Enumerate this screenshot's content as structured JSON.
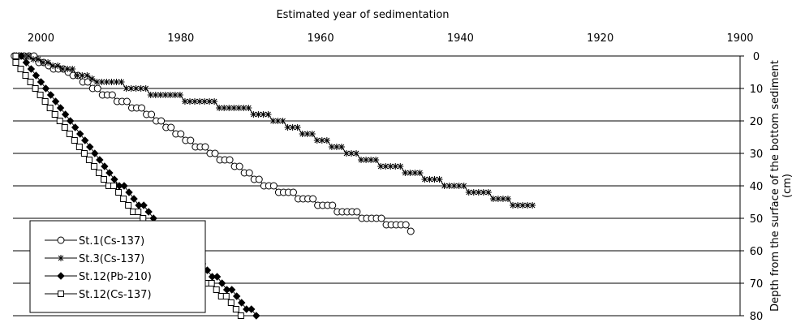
{
  "chart_data": {
    "type": "scatter",
    "title": "",
    "xlabel": "Estimated year of sedimentation",
    "ylabel": "Depth from the surface of the bottom sediment (cm)",
    "ylabel_lines": [
      "Depth from the surface of the bottom sediment",
      "(cm)"
    ],
    "xlim": [
      2004,
      1900
    ],
    "ylim": [
      0,
      80
    ],
    "x_reversed": true,
    "y_reversed": true,
    "x_ticks": [
      2000,
      1980,
      1960,
      1940,
      1920,
      1900
    ],
    "y_ticks": [
      0,
      10,
      20,
      30,
      40,
      50,
      60,
      70,
      80
    ],
    "grid": "horizontal",
    "legend_position": "bottom-left",
    "series": [
      {
        "name": "St.1(Cs-137)",
        "marker": "open-circle",
        "points": [
          [
            2003.8,
            0
          ],
          [
            2003.1,
            0
          ],
          [
            2002.4,
            0
          ],
          [
            2001.7,
            0
          ],
          [
            2001,
            0
          ],
          [
            2000.3,
            2
          ],
          [
            1999.6,
            2
          ],
          [
            1998.9,
            3
          ],
          [
            1998.2,
            4
          ],
          [
            1997.5,
            4
          ],
          [
            1996.8,
            4
          ],
          [
            1996.1,
            5
          ],
          [
            1995.4,
            6
          ],
          [
            1994.7,
            6
          ],
          [
            1994,
            8
          ],
          [
            1993.3,
            8
          ],
          [
            1992.6,
            10
          ],
          [
            1991.9,
            10
          ],
          [
            1991.2,
            12
          ],
          [
            1990.5,
            12
          ],
          [
            1989.8,
            12
          ],
          [
            1989.1,
            14
          ],
          [
            1988.4,
            14
          ],
          [
            1987.7,
            14
          ],
          [
            1987,
            16
          ],
          [
            1986.3,
            16
          ],
          [
            1985.6,
            16
          ],
          [
            1984.9,
            18
          ],
          [
            1984.2,
            18
          ],
          [
            1983.5,
            20
          ],
          [
            1982.8,
            20
          ],
          [
            1982.1,
            22
          ],
          [
            1981.4,
            22
          ],
          [
            1980.7,
            24
          ],
          [
            1980,
            24
          ],
          [
            1979.3,
            26
          ],
          [
            1978.6,
            26
          ],
          [
            1977.9,
            28
          ],
          [
            1977.2,
            28
          ],
          [
            1976.5,
            28
          ],
          [
            1975.8,
            30
          ],
          [
            1975.1,
            30
          ],
          [
            1974.4,
            32
          ],
          [
            1973.7,
            32
          ],
          [
            1973,
            32
          ],
          [
            1972.3,
            34
          ],
          [
            1971.6,
            34
          ],
          [
            1970.9,
            36
          ],
          [
            1970.2,
            36
          ],
          [
            1969.5,
            38
          ],
          [
            1968.8,
            38
          ],
          [
            1968.1,
            40
          ],
          [
            1967.4,
            40
          ],
          [
            1966.7,
            40
          ],
          [
            1966,
            42
          ],
          [
            1965.3,
            42
          ],
          [
            1964.6,
            42
          ],
          [
            1963.9,
            42
          ],
          [
            1963.2,
            44
          ],
          [
            1962.5,
            44
          ],
          [
            1961.8,
            44
          ],
          [
            1961.1,
            44
          ],
          [
            1960.4,
            46
          ],
          [
            1959.7,
            46
          ],
          [
            1959,
            46
          ],
          [
            1958.3,
            46
          ],
          [
            1957.6,
            48
          ],
          [
            1956.9,
            48
          ],
          [
            1956.2,
            48
          ],
          [
            1955.5,
            48
          ],
          [
            1954.8,
            48
          ],
          [
            1954.1,
            50
          ],
          [
            1953.4,
            50
          ],
          [
            1952.7,
            50
          ],
          [
            1952,
            50
          ],
          [
            1951.3,
            50
          ],
          [
            1950.6,
            52
          ],
          [
            1949.9,
            52
          ],
          [
            1949.2,
            52
          ],
          [
            1948.5,
            52
          ],
          [
            1947.8,
            52
          ],
          [
            1947.1,
            54
          ]
        ]
      },
      {
        "name": "St.3(Cs-137)",
        "marker": "asterisk",
        "points": [
          [
            2003.2,
            0
          ],
          [
            2002.5,
            0
          ],
          [
            2001.8,
            0
          ],
          [
            2001.1,
            1
          ],
          [
            2000.4,
            1
          ],
          [
            1999.7,
            2
          ],
          [
            1999,
            2
          ],
          [
            1998.3,
            3
          ],
          [
            1997.6,
            3
          ],
          [
            1996.9,
            4
          ],
          [
            1996.2,
            4
          ],
          [
            1995.5,
            4
          ],
          [
            1994.8,
            6
          ],
          [
            1994.1,
            6
          ],
          [
            1993.4,
            6
          ],
          [
            1992.7,
            7
          ],
          [
            1992,
            8
          ],
          [
            1991.3,
            8
          ],
          [
            1990.6,
            8
          ],
          [
            1989.9,
            8
          ],
          [
            1989.2,
            8
          ],
          [
            1988.5,
            8
          ],
          [
            1987.8,
            10
          ],
          [
            1987.1,
            10
          ],
          [
            1986.4,
            10
          ],
          [
            1985.7,
            10
          ],
          [
            1985,
            10
          ],
          [
            1984.3,
            12
          ],
          [
            1983.6,
            12
          ],
          [
            1982.9,
            12
          ],
          [
            1982.2,
            12
          ],
          [
            1981.5,
            12
          ],
          [
            1980.8,
            12
          ],
          [
            1980.1,
            12
          ],
          [
            1979.4,
            14
          ],
          [
            1978.7,
            14
          ],
          [
            1978,
            14
          ],
          [
            1977.3,
            14
          ],
          [
            1976.6,
            14
          ],
          [
            1975.9,
            14
          ],
          [
            1975.2,
            14
          ],
          [
            1974.5,
            16
          ],
          [
            1973.8,
            16
          ],
          [
            1973.1,
            16
          ],
          [
            1972.4,
            16
          ],
          [
            1971.7,
            16
          ],
          [
            1971,
            16
          ],
          [
            1970.3,
            16
          ],
          [
            1969.6,
            18
          ],
          [
            1968.9,
            18
          ],
          [
            1968.2,
            18
          ],
          [
            1967.5,
            18
          ],
          [
            1966.8,
            20
          ],
          [
            1966.1,
            20
          ],
          [
            1965.4,
            20
          ],
          [
            1964.7,
            22
          ],
          [
            1964,
            22
          ],
          [
            1963.3,
            22
          ],
          [
            1962.6,
            24
          ],
          [
            1961.9,
            24
          ],
          [
            1961.2,
            24
          ],
          [
            1960.5,
            26
          ],
          [
            1959.8,
            26
          ],
          [
            1959.1,
            26
          ],
          [
            1958.4,
            28
          ],
          [
            1957.7,
            28
          ],
          [
            1957,
            28
          ],
          [
            1956.3,
            30
          ],
          [
            1955.6,
            30
          ],
          [
            1954.9,
            30
          ],
          [
            1954.2,
            32
          ],
          [
            1953.5,
            32
          ],
          [
            1952.8,
            32
          ],
          [
            1952.1,
            32
          ],
          [
            1951.4,
            34
          ],
          [
            1950.7,
            34
          ],
          [
            1950,
            34
          ],
          [
            1949.3,
            34
          ],
          [
            1948.6,
            34
          ],
          [
            1947.9,
            36
          ],
          [
            1947.2,
            36
          ],
          [
            1946.5,
            36
          ],
          [
            1945.8,
            36
          ],
          [
            1945.1,
            38
          ],
          [
            1944.4,
            38
          ],
          [
            1943.7,
            38
          ],
          [
            1943,
            38
          ],
          [
            1942.3,
            40
          ],
          [
            1941.6,
            40
          ],
          [
            1940.9,
            40
          ],
          [
            1940.2,
            40
          ],
          [
            1939.5,
            40
          ],
          [
            1938.8,
            42
          ],
          [
            1938.1,
            42
          ],
          [
            1937.4,
            42
          ],
          [
            1936.7,
            42
          ],
          [
            1936,
            42
          ],
          [
            1935.3,
            44
          ],
          [
            1934.6,
            44
          ],
          [
            1933.9,
            44
          ],
          [
            1933.2,
            44
          ],
          [
            1932.5,
            46
          ],
          [
            1931.8,
            46
          ],
          [
            1931.1,
            46
          ],
          [
            1930.4,
            46
          ],
          [
            1929.7,
            46
          ]
        ]
      },
      {
        "name": "St.12(Pb-210)",
        "marker": "filled-diamond",
        "points": [
          [
            2003.5,
            0
          ],
          [
            2002.8,
            0
          ],
          [
            2002.1,
            2
          ],
          [
            2001.4,
            4
          ],
          [
            2000.7,
            6
          ],
          [
            2000,
            8
          ],
          [
            1999.3,
            10
          ],
          [
            1998.6,
            12
          ],
          [
            1997.9,
            14
          ],
          [
            1997.2,
            16
          ],
          [
            1996.5,
            18
          ],
          [
            1995.8,
            20
          ],
          [
            1995.1,
            22
          ],
          [
            1994.4,
            24
          ],
          [
            1993.7,
            26
          ],
          [
            1993,
            28
          ],
          [
            1992.3,
            30
          ],
          [
            1991.6,
            32
          ],
          [
            1990.9,
            34
          ],
          [
            1990.2,
            36
          ],
          [
            1989.5,
            38
          ],
          [
            1988.8,
            40
          ],
          [
            1988.1,
            40
          ],
          [
            1987.4,
            42
          ],
          [
            1986.7,
            44
          ],
          [
            1986,
            46
          ],
          [
            1985.3,
            46
          ],
          [
            1984.6,
            48
          ],
          [
            1983.9,
            50
          ],
          [
            1983.2,
            52
          ],
          [
            1982.5,
            52
          ],
          [
            1981.8,
            54
          ],
          [
            1981.1,
            56
          ],
          [
            1980.4,
            58
          ],
          [
            1979.7,
            58
          ],
          [
            1979,
            60
          ],
          [
            1978.3,
            62
          ],
          [
            1977.6,
            62
          ],
          [
            1976.9,
            64
          ],
          [
            1976.2,
            66
          ],
          [
            1975.5,
            68
          ],
          [
            1974.8,
            68
          ],
          [
            1974.1,
            70
          ],
          [
            1973.4,
            72
          ],
          [
            1972.7,
            72
          ],
          [
            1972,
            74
          ],
          [
            1971.3,
            76
          ],
          [
            1970.6,
            78
          ],
          [
            1969.9,
            78
          ],
          [
            1969.2,
            80
          ]
        ]
      },
      {
        "name": "St.12(Cs-137)",
        "marker": "open-square",
        "points": [
          [
            2003.6,
            0
          ],
          [
            2003.6,
            2
          ],
          [
            2002.9,
            4
          ],
          [
            2002.2,
            6
          ],
          [
            2001.5,
            8
          ],
          [
            2000.8,
            10
          ],
          [
            2000.1,
            12
          ],
          [
            1999.4,
            14
          ],
          [
            1998.7,
            16
          ],
          [
            1998,
            18
          ],
          [
            1997.3,
            20
          ],
          [
            1996.6,
            22
          ],
          [
            1995.9,
            24
          ],
          [
            1995.2,
            26
          ],
          [
            1994.5,
            28
          ],
          [
            1993.8,
            30
          ],
          [
            1993.1,
            32
          ],
          [
            1992.4,
            34
          ],
          [
            1991.7,
            36
          ],
          [
            1991,
            38
          ],
          [
            1990.3,
            40
          ],
          [
            1989.6,
            40
          ],
          [
            1988.9,
            42
          ],
          [
            1988.2,
            44
          ],
          [
            1987.5,
            46
          ],
          [
            1986.8,
            48
          ],
          [
            1986.1,
            48
          ],
          [
            1985.4,
            50
          ],
          [
            1984.7,
            52
          ],
          [
            1984,
            54
          ],
          [
            1983.3,
            54
          ],
          [
            1982.6,
            56
          ],
          [
            1981.9,
            58
          ],
          [
            1981.2,
            60
          ],
          [
            1980.5,
            60
          ],
          [
            1979.8,
            62
          ],
          [
            1979.1,
            64
          ],
          [
            1978.4,
            64
          ],
          [
            1977.7,
            66
          ],
          [
            1977,
            68
          ],
          [
            1976.3,
            70
          ],
          [
            1975.6,
            70
          ],
          [
            1974.9,
            72
          ],
          [
            1974.2,
            74
          ],
          [
            1973.5,
            74
          ],
          [
            1972.8,
            76
          ],
          [
            1972.1,
            78
          ],
          [
            1971.4,
            80
          ]
        ]
      }
    ]
  }
}
